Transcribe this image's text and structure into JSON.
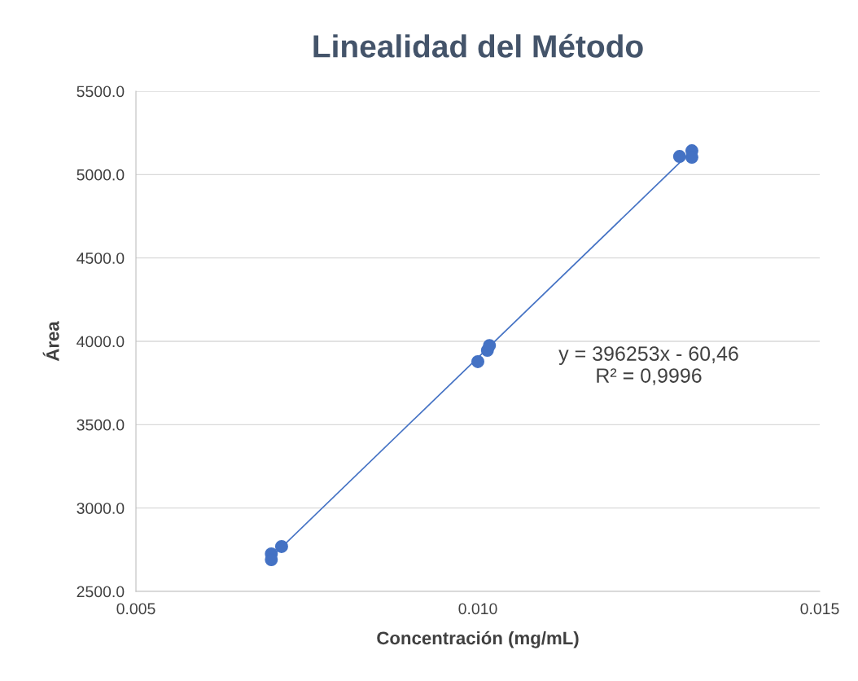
{
  "chart_data": {
    "type": "scatter",
    "title": "Linealidad del Método",
    "xlabel": "Concentración (mg/mL)",
    "ylabel": "Área",
    "series": [
      {
        "color": "#4472c4",
        "marker": "circle",
        "x": [
          0.00698,
          0.00698,
          0.00713,
          0.01,
          0.01014,
          0.01017,
          0.01295,
          0.01313,
          0.01313
        ],
        "values": [
          2725,
          2690,
          2769,
          3878,
          3946,
          3975,
          5109,
          5143,
          5104
        ]
      },
      {
        "type": "line",
        "marker": "none",
        "color": "#4472c4",
        "x": [
          0.00698,
          0.01313
        ],
        "values": [
          2705,
          5142
        ]
      }
    ],
    "annotations": [
      "y = 396253x - 60,46",
      "R² = 0,9996"
    ],
    "xlim": [
      0.005,
      0.015
    ],
    "xticks": [
      {
        "value": 0.005,
        "label": "0.005"
      },
      {
        "value": 0.01,
        "label": "0.010"
      },
      {
        "value": 0.015,
        "label": "0.015"
      }
    ],
    "ylim": [
      2500,
      5500
    ],
    "yticks": [
      {
        "value": 2500,
        "label": "2500.0"
      },
      {
        "value": 3000,
        "label": "3000.0"
      },
      {
        "value": 3500,
        "label": "3500.0"
      },
      {
        "value": 4000,
        "label": "4000.0"
      },
      {
        "value": 4500,
        "label": "4500.0"
      },
      {
        "value": 5000,
        "label": "5000.0"
      },
      {
        "value": 5500,
        "label": "5500.0"
      }
    ],
    "grid": "y",
    "legend": false
  }
}
